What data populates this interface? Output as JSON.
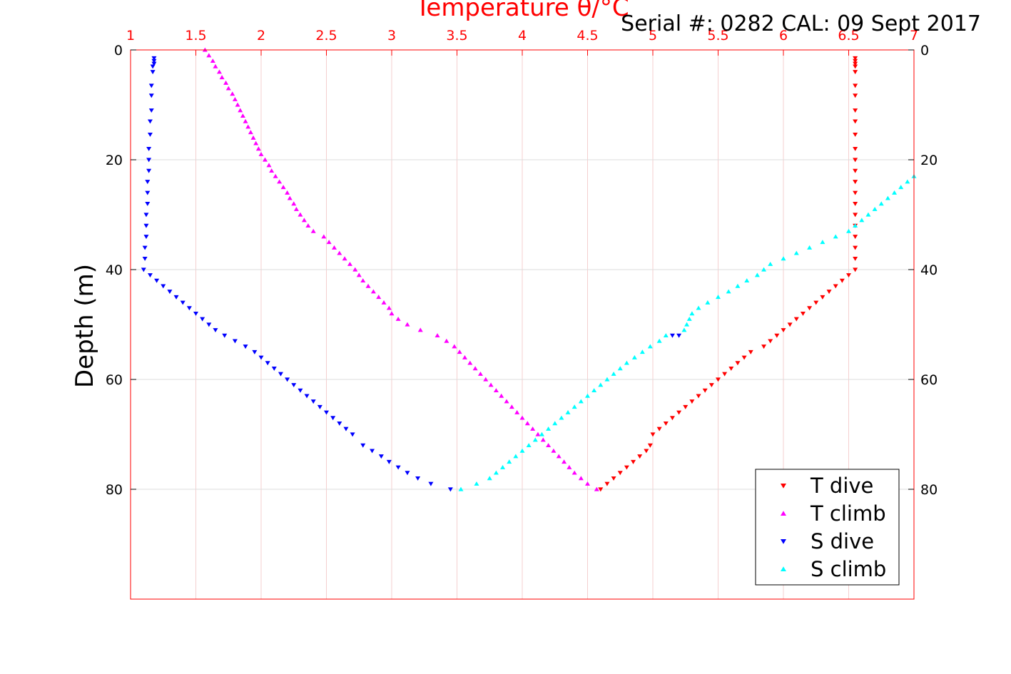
{
  "chart_data": {
    "type": "scatter",
    "title": "Serial #: 0282  CAL: 09 Sept 2017",
    "xlabel": "Temperature θ/°C",
    "ylabel": "Depth (m)",
    "xlim": [
      1,
      7
    ],
    "ylim": [
      0,
      100
    ],
    "y_reversed": true,
    "x_ticks": [
      "1",
      "1.5",
      "2",
      "2.5",
      "3",
      "3.5",
      "4",
      "4.5",
      "5",
      "5.5",
      "6",
      "6.5",
      "7"
    ],
    "y_ticks_left": [
      "0",
      "20",
      "40",
      "60",
      "80"
    ],
    "y_ticks_right": [
      "0",
      "20",
      "40",
      "60",
      "80"
    ],
    "grid": true,
    "legend_position": "bottom-right",
    "colors": {
      "axis": "#ff0000",
      "t_dive": "#ff0000",
      "t_climb": "#ff00ff",
      "s_dive": "#0000ff",
      "s_climb": "#00ffff"
    },
    "series": [
      {
        "name": "T dive",
        "marker": "triangle-down",
        "color": "#ff0000",
        "points": [
          [
            6.55,
            1.5
          ],
          [
            6.55,
            2
          ],
          [
            6.55,
            2.5
          ],
          [
            6.55,
            3
          ],
          [
            6.55,
            4
          ],
          [
            6.55,
            6.5
          ],
          [
            6.55,
            8.3
          ],
          [
            6.55,
            11
          ],
          [
            6.55,
            13
          ],
          [
            6.55,
            15.4
          ],
          [
            6.55,
            18
          ],
          [
            6.55,
            20
          ],
          [
            6.55,
            22
          ],
          [
            6.55,
            24
          ],
          [
            6.55,
            26
          ],
          [
            6.55,
            28
          ],
          [
            6.55,
            30
          ],
          [
            6.55,
            32
          ],
          [
            6.55,
            34
          ],
          [
            6.55,
            36
          ],
          [
            6.55,
            38
          ],
          [
            6.55,
            40
          ],
          [
            6.5,
            41
          ],
          [
            6.45,
            42
          ],
          [
            6.4,
            43
          ],
          [
            6.35,
            44
          ],
          [
            6.3,
            45
          ],
          [
            6.25,
            46
          ],
          [
            6.2,
            47
          ],
          [
            6.15,
            48
          ],
          [
            6.1,
            49
          ],
          [
            6.05,
            50
          ],
          [
            6.0,
            51
          ],
          [
            5.95,
            52
          ],
          [
            5.9,
            53
          ],
          [
            5.85,
            54
          ],
          [
            5.75,
            55
          ],
          [
            5.7,
            56
          ],
          [
            5.65,
            57
          ],
          [
            5.6,
            58
          ],
          [
            5.55,
            59
          ],
          [
            5.5,
            60
          ],
          [
            5.45,
            61
          ],
          [
            5.4,
            62
          ],
          [
            5.35,
            63
          ],
          [
            5.3,
            64
          ],
          [
            5.25,
            65
          ],
          [
            5.2,
            66
          ],
          [
            5.15,
            67
          ],
          [
            5.1,
            68
          ],
          [
            5.05,
            69
          ],
          [
            5.0,
            70
          ],
          [
            4.98,
            72
          ],
          [
            4.95,
            73
          ],
          [
            4.9,
            74
          ],
          [
            4.85,
            75
          ],
          [
            4.8,
            76
          ],
          [
            4.75,
            77
          ],
          [
            4.7,
            78
          ],
          [
            4.65,
            79
          ],
          [
            4.6,
            80
          ]
        ]
      },
      {
        "name": "T climb",
        "marker": "triangle-up",
        "color": "#ff00ff",
        "points": [
          [
            1.57,
            0
          ],
          [
            1.6,
            1
          ],
          [
            1.63,
            2
          ],
          [
            1.65,
            3
          ],
          [
            1.68,
            4
          ],
          [
            1.7,
            5
          ],
          [
            1.73,
            6
          ],
          [
            1.75,
            7
          ],
          [
            1.78,
            8
          ],
          [
            1.8,
            9
          ],
          [
            1.82,
            10
          ],
          [
            1.84,
            11
          ],
          [
            1.86,
            12
          ],
          [
            1.88,
            13
          ],
          [
            1.9,
            14
          ],
          [
            1.92,
            15
          ],
          [
            1.94,
            16
          ],
          [
            1.96,
            17
          ],
          [
            1.98,
            18
          ],
          [
            2.0,
            19
          ],
          [
            2.03,
            20
          ],
          [
            2.06,
            21
          ],
          [
            2.08,
            22
          ],
          [
            2.11,
            23
          ],
          [
            2.14,
            24
          ],
          [
            2.17,
            25
          ],
          [
            2.2,
            26
          ],
          [
            2.22,
            27
          ],
          [
            2.25,
            28
          ],
          [
            2.27,
            29
          ],
          [
            2.3,
            30
          ],
          [
            2.33,
            31
          ],
          [
            2.36,
            32
          ],
          [
            2.4,
            33
          ],
          [
            2.48,
            34
          ],
          [
            2.52,
            35
          ],
          [
            2.56,
            36
          ],
          [
            2.6,
            37
          ],
          [
            2.64,
            38
          ],
          [
            2.68,
            39
          ],
          [
            2.72,
            40
          ],
          [
            2.75,
            41
          ],
          [
            2.78,
            42
          ],
          [
            2.82,
            43
          ],
          [
            2.86,
            44
          ],
          [
            2.9,
            45
          ],
          [
            2.94,
            46
          ],
          [
            2.98,
            47
          ],
          [
            3.0,
            48
          ],
          [
            3.05,
            49
          ],
          [
            3.12,
            50
          ],
          [
            3.22,
            51
          ],
          [
            3.35,
            52
          ],
          [
            3.42,
            53
          ],
          [
            3.48,
            54
          ],
          [
            3.52,
            55
          ],
          [
            3.56,
            56
          ],
          [
            3.6,
            57
          ],
          [
            3.64,
            58
          ],
          [
            3.68,
            59
          ],
          [
            3.72,
            60
          ],
          [
            3.76,
            61
          ],
          [
            3.8,
            62
          ],
          [
            3.84,
            63
          ],
          [
            3.88,
            64
          ],
          [
            3.92,
            65
          ],
          [
            3.96,
            66
          ],
          [
            4.0,
            67
          ],
          [
            4.04,
            68
          ],
          [
            4.08,
            69
          ],
          [
            4.12,
            70
          ],
          [
            4.16,
            71
          ],
          [
            4.2,
            72
          ],
          [
            4.24,
            73
          ],
          [
            4.28,
            74
          ],
          [
            4.32,
            75
          ],
          [
            4.36,
            76
          ],
          [
            4.4,
            77
          ],
          [
            4.45,
            78
          ],
          [
            4.5,
            79
          ],
          [
            4.57,
            80
          ]
        ]
      },
      {
        "name": "S dive",
        "marker": "triangle-down",
        "color": "#0000ff",
        "points": [
          [
            1.18,
            1.5
          ],
          [
            1.18,
            2
          ],
          [
            1.18,
            2.5
          ],
          [
            1.17,
            3
          ],
          [
            1.17,
            4
          ],
          [
            1.16,
            6.5
          ],
          [
            1.16,
            8.3
          ],
          [
            1.16,
            11
          ],
          [
            1.15,
            13
          ],
          [
            1.15,
            15.4
          ],
          [
            1.14,
            18
          ],
          [
            1.14,
            20
          ],
          [
            1.14,
            22
          ],
          [
            1.13,
            24
          ],
          [
            1.13,
            26
          ],
          [
            1.13,
            28
          ],
          [
            1.12,
            30
          ],
          [
            1.12,
            32
          ],
          [
            1.12,
            34
          ],
          [
            1.11,
            36
          ],
          [
            1.11,
            38
          ],
          [
            1.1,
            40
          ],
          [
            1.15,
            41
          ],
          [
            1.2,
            42
          ],
          [
            1.25,
            43
          ],
          [
            1.3,
            44
          ],
          [
            1.35,
            45
          ],
          [
            1.4,
            46
          ],
          [
            1.45,
            47
          ],
          [
            1.5,
            48
          ],
          [
            1.55,
            49
          ],
          [
            1.6,
            50
          ],
          [
            1.65,
            51
          ],
          [
            1.72,
            52
          ],
          [
            1.8,
            53
          ],
          [
            1.88,
            54
          ],
          [
            1.95,
            55
          ],
          [
            2.0,
            56
          ],
          [
            2.05,
            57
          ],
          [
            2.1,
            58
          ],
          [
            2.15,
            59
          ],
          [
            2.2,
            60
          ],
          [
            2.25,
            61
          ],
          [
            2.3,
            62
          ],
          [
            2.35,
            63
          ],
          [
            2.4,
            64
          ],
          [
            2.45,
            65
          ],
          [
            2.5,
            66
          ],
          [
            2.55,
            67
          ],
          [
            2.6,
            68
          ],
          [
            2.65,
            69
          ],
          [
            2.7,
            70
          ],
          [
            2.78,
            72
          ],
          [
            2.85,
            73
          ],
          [
            2.92,
            74
          ],
          [
            2.98,
            75
          ],
          [
            3.05,
            76
          ],
          [
            3.12,
            77
          ],
          [
            3.2,
            78
          ],
          [
            3.3,
            79
          ],
          [
            3.45,
            80
          ],
          [
            5.15,
            52
          ],
          [
            5.2,
            52
          ]
        ]
      },
      {
        "name": "S climb",
        "marker": "triangle-up",
        "color": "#00ffff",
        "points": [
          [
            7.0,
            23
          ],
          [
            6.95,
            24
          ],
          [
            6.9,
            25
          ],
          [
            6.85,
            26
          ],
          [
            6.8,
            27
          ],
          [
            6.75,
            28
          ],
          [
            6.7,
            29
          ],
          [
            6.65,
            30
          ],
          [
            6.6,
            31
          ],
          [
            6.55,
            32
          ],
          [
            6.5,
            33
          ],
          [
            6.4,
            34
          ],
          [
            6.3,
            35
          ],
          [
            6.2,
            36
          ],
          [
            6.1,
            37
          ],
          [
            6.0,
            38
          ],
          [
            5.9,
            39
          ],
          [
            5.85,
            40
          ],
          [
            5.8,
            41
          ],
          [
            5.72,
            42
          ],
          [
            5.65,
            43
          ],
          [
            5.58,
            44
          ],
          [
            5.5,
            45
          ],
          [
            5.42,
            46
          ],
          [
            5.35,
            47
          ],
          [
            5.3,
            48
          ],
          [
            5.28,
            49
          ],
          [
            5.26,
            50
          ],
          [
            5.24,
            51
          ],
          [
            5.1,
            52
          ],
          [
            5.05,
            53
          ],
          [
            4.98,
            54
          ],
          [
            4.92,
            55
          ],
          [
            4.86,
            56
          ],
          [
            4.8,
            57
          ],
          [
            4.75,
            58
          ],
          [
            4.7,
            59
          ],
          [
            4.65,
            60
          ],
          [
            4.6,
            61
          ],
          [
            4.55,
            62
          ],
          [
            4.5,
            63
          ],
          [
            4.45,
            64
          ],
          [
            4.4,
            65
          ],
          [
            4.35,
            66
          ],
          [
            4.3,
            67
          ],
          [
            4.25,
            68
          ],
          [
            4.2,
            69
          ],
          [
            4.15,
            70
          ],
          [
            4.1,
            71
          ],
          [
            4.05,
            72
          ],
          [
            4.0,
            73
          ],
          [
            3.95,
            74
          ],
          [
            3.9,
            75
          ],
          [
            3.85,
            76
          ],
          [
            3.8,
            77
          ],
          [
            3.75,
            78
          ],
          [
            3.65,
            79
          ],
          [
            3.53,
            80
          ]
        ]
      }
    ]
  }
}
